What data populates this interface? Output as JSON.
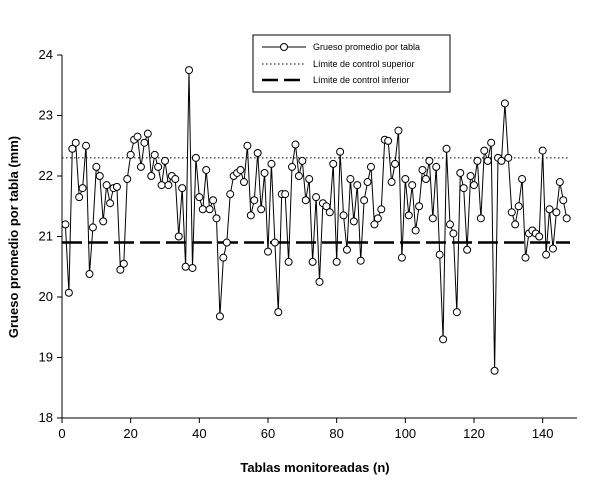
{
  "chart_data": {
    "type": "line",
    "title": "",
    "xlabel": "Tablas monitoreadas (n)",
    "ylabel": "Grueso promedio por tabla (mm)",
    "xlim": [
      0,
      150
    ],
    "ylim": [
      18,
      24
    ],
    "xticks": [
      0,
      20,
      40,
      60,
      80,
      100,
      120,
      140
    ],
    "yticks": [
      18,
      19,
      20,
      21,
      22,
      23,
      24
    ],
    "grid": false,
    "legend_position": "top-center",
    "series": [
      {
        "name": "Grueso promedio por tabla",
        "style": "line-with-open-circles",
        "x": [
          1,
          2,
          3,
          4,
          5,
          6,
          7,
          8,
          9,
          10,
          11,
          12,
          13,
          14,
          15,
          16,
          17,
          18,
          19,
          20,
          21,
          22,
          23,
          24,
          25,
          26,
          27,
          28,
          29,
          30,
          31,
          32,
          33,
          34,
          35,
          36,
          37,
          38,
          39,
          40,
          41,
          42,
          43,
          44,
          45,
          46,
          47,
          48,
          49,
          50,
          51,
          52,
          53,
          54,
          55,
          56,
          57,
          58,
          59,
          60,
          61,
          62,
          63,
          64,
          65,
          66,
          67,
          68,
          69,
          70,
          71,
          72,
          73,
          74,
          75,
          76,
          77,
          78,
          79,
          80,
          81,
          82,
          83,
          84,
          85,
          86,
          87,
          88,
          89,
          90,
          91,
          92,
          93,
          94,
          95,
          96,
          97,
          98,
          99,
          100,
          101,
          102,
          103,
          104,
          105,
          106,
          107,
          108,
          109,
          110,
          111,
          112,
          113,
          114,
          115,
          116,
          117,
          118,
          119,
          120,
          121,
          122,
          123,
          124,
          125,
          126,
          127,
          128,
          129,
          130,
          131,
          132,
          133,
          134,
          135,
          136,
          137,
          138,
          139,
          140,
          141,
          142,
          143,
          144,
          145,
          146,
          147
        ],
        "values": [
          21.2,
          20.07,
          22.45,
          22.55,
          21.65,
          21.8,
          22.5,
          20.38,
          21.15,
          22.15,
          22.0,
          21.25,
          21.85,
          21.55,
          21.8,
          21.82,
          20.45,
          20.55,
          21.95,
          22.35,
          22.6,
          22.65,
          22.15,
          22.55,
          22.7,
          22.0,
          22.35,
          22.15,
          21.85,
          22.25,
          21.85,
          22.0,
          21.95,
          21.0,
          21.8,
          20.5,
          23.75,
          20.48,
          22.3,
          21.65,
          21.45,
          22.1,
          21.45,
          21.6,
          21.3,
          19.68,
          20.65,
          20.9,
          21.7,
          22.0,
          22.05,
          22.1,
          21.9,
          22.5,
          21.35,
          21.6,
          22.38,
          21.45,
          22.05,
          20.75,
          22.2,
          20.9,
          19.75,
          21.7,
          21.7,
          20.58,
          22.15,
          22.52,
          22.0,
          22.25,
          21.6,
          21.95,
          20.58,
          21.65,
          20.25,
          21.55,
          21.5,
          21.4,
          22.2,
          20.58,
          22.4,
          21.35,
          20.78,
          21.95,
          21.25,
          21.85,
          20.6,
          21.6,
          21.9,
          22.15,
          21.2,
          21.3,
          21.45,
          22.6,
          22.58,
          21.9,
          22.2,
          22.75,
          20.65,
          21.95,
          21.35,
          21.85,
          21.1,
          21.5,
          22.1,
          21.95,
          22.25,
          21.3,
          22.15,
          20.7,
          19.3,
          22.45,
          21.2,
          21.05,
          19.75,
          22.05,
          21.8,
          20.78,
          22.0,
          21.85,
          22.25,
          21.3,
          22.42,
          22.25,
          22.55,
          18.78,
          22.3,
          22.25,
          23.2,
          22.3,
          21.4,
          21.2,
          21.5,
          21.95,
          20.65,
          21.05,
          21.1,
          21.05,
          21.0,
          22.42,
          20.7,
          21.45,
          20.8,
          21.4,
          21.9,
          21.6,
          21.3
        ]
      },
      {
        "name": "Límite de control superior",
        "style": "dotted",
        "value": 22.3
      },
      {
        "name": "Límite de control inferior",
        "style": "long-dash",
        "value": 20.9
      }
    ]
  }
}
